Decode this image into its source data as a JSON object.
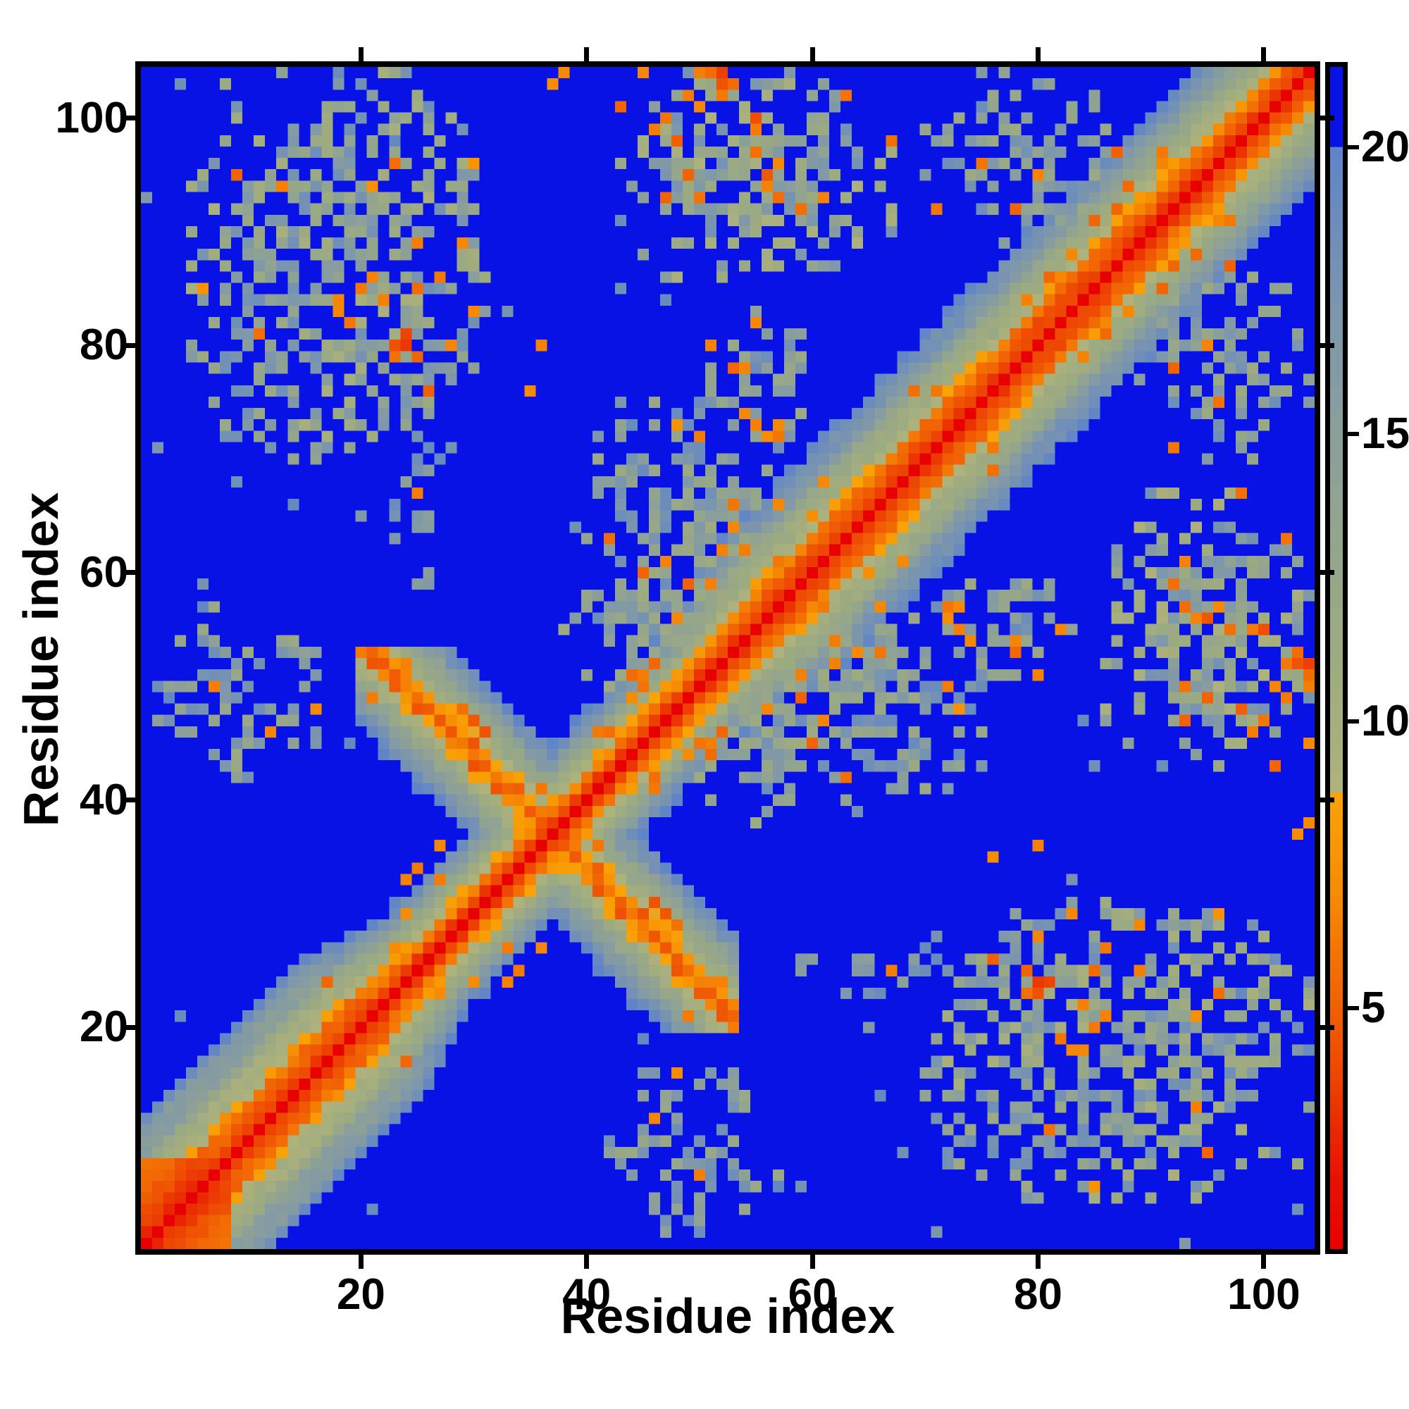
{
  "figure": {
    "xlabel": "Residue index",
    "ylabel": "Residue index"
  },
  "chart_data": {
    "type": "heatmap",
    "title": "",
    "xlabel": "Residue index",
    "ylabel": "Residue index",
    "x_range": [
      1,
      104
    ],
    "y_range": [
      1,
      104
    ],
    "x_ticks": [
      20,
      40,
      60,
      80,
      100
    ],
    "y_ticks": [
      20,
      40,
      60,
      80,
      100
    ],
    "grid": false,
    "legend_position": "none",
    "background_color": "#ffffff",
    "ocean_color": "#0912e6",
    "diagonal_color": "#f20d00",
    "colorbar": {
      "position": "right",
      "ticks": [
        5,
        10,
        15,
        20
      ],
      "vmin": 0.8,
      "vmax": 21.4,
      "stops": [
        [
          21.4,
          "#0912e6"
        ],
        [
          20.01,
          "#0912e6"
        ],
        [
          20.0,
          "#5f84c8"
        ],
        [
          17.0,
          "#7e97ab"
        ],
        [
          14.0,
          "#90a293"
        ],
        [
          11.0,
          "#9dab80"
        ],
        [
          8.76,
          "#b0b27b"
        ],
        [
          8.75,
          "#f9a306"
        ],
        [
          7.0,
          "#f68b04"
        ],
        [
          5.5,
          "#f26a04"
        ],
        [
          4.0,
          "#ee4a03"
        ],
        [
          2.8,
          "#ea2502"
        ],
        [
          2.0,
          "#e91102"
        ],
        [
          0.8,
          "#e80000"
        ]
      ]
    },
    "matrix": {
      "n": 104,
      "symmetric": true,
      "diagonal_value": 0,
      "max_value": 22,
      "description": "Symmetric residue-residue distance matrix: red diagonal band, antiparallel hairpin cross centered near residue 37 (i+j~74, residues 20-53), diffuse contact clusters between segments (6-31)x(70-104), (43-67)x(86-104), (2-16)x(41-57), (53-76)x(40-58); distances >= 20 clamp to blue.",
      "synthesis": {
        "seed": 7,
        "chain_slope_profile": [
          [
            1,
            1.5
          ],
          [
            20,
            1.5
          ],
          [
            26,
            2.35
          ],
          [
            50,
            2.35
          ],
          [
            56,
            1.7
          ],
          [
            86,
            1.7
          ],
          [
            104,
            1.85
          ]
        ],
        "band": {
          "offset_nterm": 2.0,
          "offset": 1.6,
          "ripple_nterm": [
            1.0,
            1.75,
            0
          ],
          "ripple_mid": [
            0.8,
            1.6,
            0.5
          ],
          "jitter": 0.8,
          "k1_value": 3.2,
          "speckle_prob": 0.05,
          "speckle_value": [
            5.2,
            7.4
          ]
        },
        "nterm_core": {
          "i_max": 7,
          "base": 2.2,
          "slope": 0.5
        },
        "hairpin": {
          "sum": 74,
          "range": [
            20,
            53
          ],
          "base": 5.6,
          "slope": 1.9,
          "jitter": 1.2,
          "red_prob": 0.22,
          "red_value": 4.2
        },
        "blobs": [
          [
            70,
            104,
            5,
            31,
            14,
            4.5,
            0.55,
            0.05
          ],
          [
            86,
            104,
            43,
            67,
            13.5,
            4.5,
            0.6,
            0.07
          ],
          [
            41,
            57,
            2,
            16,
            15.5,
            4,
            0.38,
            0.03
          ],
          [
            40,
            58,
            53,
            76,
            15,
            4,
            0.5,
            0.04
          ],
          [
            72,
            84,
            50,
            60,
            15,
            4,
            0.4,
            0.08
          ],
          [
            58,
            76,
            23,
            27,
            17,
            2.5,
            0.45,
            0.02
          ],
          [
            88,
            104,
            70,
            88,
            15,
            4,
            0.45,
            0.06
          ],
          [
            50,
            62,
            38,
            50,
            14.5,
            4,
            0.5,
            0.05
          ]
        ],
        "hotspots": [
          [
            24,
            80,
            3.4
          ],
          [
            24,
            81,
            3.8
          ],
          [
            23,
            80,
            4.3
          ],
          [
            25,
            79,
            5.2
          ],
          [
            23,
            79,
            5.8
          ],
          [
            20,
            85,
            6.2
          ],
          [
            21,
            86,
            6.6
          ],
          [
            18,
            84,
            6.8
          ],
          [
            104,
            52,
            3.6
          ],
          [
            103,
            52,
            4.4
          ],
          [
            103,
            53,
            5.6
          ],
          [
            102,
            52,
            6.2
          ],
          [
            104,
            51,
            5.6
          ],
          [
            104,
            50,
            6.4
          ],
          [
            102,
            49,
            6.3
          ],
          [
            101,
            50,
            6.8
          ],
          [
            100,
            55,
            4.2
          ],
          [
            99,
            55,
            6.3
          ],
          [
            97,
            55,
            5.8
          ],
          [
            95,
            56,
            4.6
          ],
          [
            94,
            56,
            6.6
          ],
          [
            96,
            57,
            6.9
          ],
          [
            93,
            61,
            6.6
          ],
          [
            104,
            45,
            6.8
          ],
          [
            104,
            38,
            6.9
          ],
          [
            103,
            37,
            7.2
          ],
          [
            89,
            25,
            6.4
          ],
          [
            89,
            29,
            6.8
          ],
          [
            86,
            27,
            6.2
          ],
          [
            83,
            30,
            6.9
          ],
          [
            80,
            36,
            6.6
          ],
          [
            76,
            35,
            7.0
          ],
          [
            84,
            22,
            6.5
          ],
          [
            47,
            30,
            4.6
          ],
          [
            46,
            31,
            4.4
          ],
          [
            45,
            30,
            5.3
          ],
          [
            48,
            29,
            5.8
          ],
          [
            59,
            51,
            6.5
          ],
          [
            56,
            48,
            6.8
          ],
          [
            62,
            54,
            6.4
          ],
          [
            66,
            57,
            6.9
          ],
          [
            61,
            47,
            6.7
          ],
          [
            49,
            21,
            6.3
          ],
          [
            50,
            23,
            5.9
          ],
          [
            52,
            24,
            6.6
          ],
          [
            34,
            25,
            6.2
          ],
          [
            33,
            24,
            6.6
          ],
          [
            36,
            27,
            6.8
          ],
          [
            73,
            55,
            6.5
          ],
          [
            74,
            54,
            6.9
          ],
          [
            72,
            56,
            7.1
          ]
        ],
        "ocean_singles": {
          "count": 70,
          "min_offset": 12,
          "value": [
            16.5,
            19.5
          ]
        }
      }
    }
  }
}
